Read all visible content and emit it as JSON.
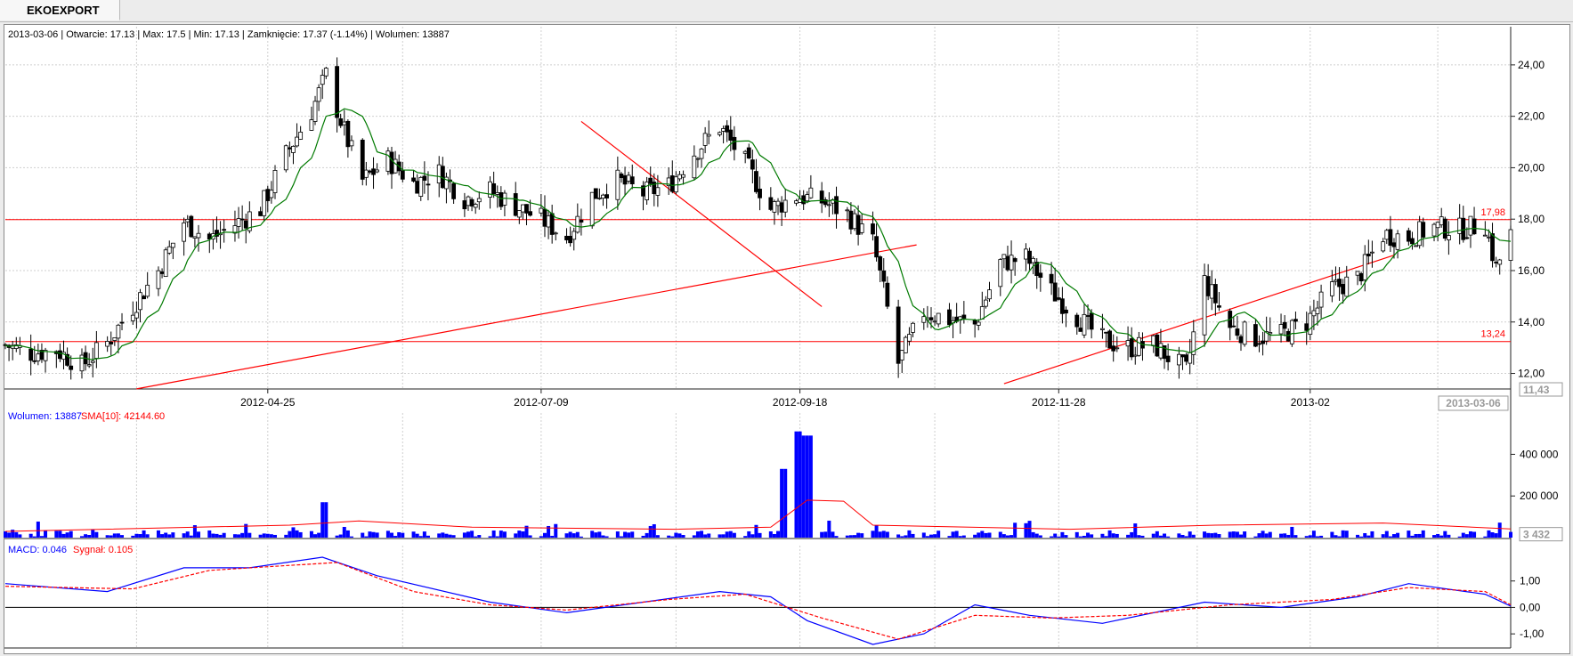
{
  "tab": {
    "label": "EKOEXPORT"
  },
  "info": {
    "date": "2013-03-06",
    "open_label": "Otwarcie",
    "open": "17.13",
    "max_label": "Max",
    "max": "17.5",
    "min_label": "Min",
    "min": "17.13",
    "close_label": "Zamknięcie",
    "close": "17.37 (-1.14%)",
    "volume_label": "Wolumen",
    "volume": "13887",
    "text": "2013-03-06 | Otwarcie: 17.13 | Max: 17.5 | Min: 17.13 | Zamknięcie: 17.37 (-1.14%)  | Wolumen: 13887"
  },
  "colors": {
    "up_candle": "#ffffff",
    "down_candle": "#000000",
    "sma_line": "#007a00",
    "trend_lines": "#ff0000",
    "volume_bars": "#0000ff",
    "macd": "#0000ff",
    "signal": "#ff0000"
  },
  "chart_data": [
    {
      "type": "candlestick",
      "title": "",
      "ylim": [
        11.43,
        25.0
      ],
      "y_ticks": [
        "12,00",
        "14,00",
        "16,00",
        "18,00",
        "20,00",
        "22,00",
        "24,00"
      ],
      "x_ticks": [
        "2012-04-25",
        "2012-07-09",
        "2012-09-18",
        "2012-11-28",
        "2013-02"
      ],
      "current_date_label": "2013-03-06",
      "min_label": "11,43",
      "grid": true,
      "horizontal_levels": [
        {
          "value": 17.98,
          "label": "17,98"
        },
        {
          "value": 13.24,
          "label": "13,24"
        }
      ],
      "trend_lines": [
        {
          "from": [
            "2012-03-20",
            11.4
          ],
          "to": [
            "2012-10-20",
            17.0
          ]
        },
        {
          "from": [
            "2012-07-20",
            21.8
          ],
          "to": [
            "2012-09-24",
            14.6
          ]
        },
        {
          "from": [
            "2012-11-13",
            11.6
          ],
          "to": [
            "2013-02-28",
            16.6
          ]
        }
      ],
      "close_path": [
        [
          "2012-02-13",
          13.1
        ],
        [
          "2012-02-20",
          12.8
        ],
        [
          "2012-02-27",
          12.9
        ],
        [
          "2012-03-05",
          12.3
        ],
        [
          "2012-03-12",
          13.2
        ],
        [
          "2012-03-19",
          14.6
        ],
        [
          "2012-03-26",
          16.0
        ],
        [
          "2012-04-02",
          17.9
        ],
        [
          "2012-04-09",
          17.2
        ],
        [
          "2012-04-16",
          17.8
        ],
        [
          "2012-04-23",
          18.4
        ],
        [
          "2012-04-30",
          20.5
        ],
        [
          "2012-05-07",
          22.2
        ],
        [
          "2012-05-11",
          23.6
        ],
        [
          "2012-05-16",
          21.4
        ],
        [
          "2012-05-21",
          19.5
        ],
        [
          "2012-05-28",
          20.3
        ],
        [
          "2012-06-04",
          19.4
        ],
        [
          "2012-06-11",
          19.8
        ],
        [
          "2012-06-18",
          18.8
        ],
        [
          "2012-06-25",
          19.1
        ],
        [
          "2012-07-02",
          18.5
        ],
        [
          "2012-07-09",
          18.0
        ],
        [
          "2012-07-16",
          17.3
        ],
        [
          "2012-07-23",
          18.9
        ],
        [
          "2012-07-30",
          19.5
        ],
        [
          "2012-08-06",
          19.0
        ],
        [
          "2012-08-13",
          19.3
        ],
        [
          "2012-08-20",
          20.6
        ],
        [
          "2012-08-27",
          21.6
        ],
        [
          "2012-09-03",
          20.2
        ],
        [
          "2012-09-10",
          18.4
        ],
        [
          "2012-09-17",
          18.9
        ],
        [
          "2012-09-24",
          18.7
        ],
        [
          "2012-10-01",
          18.2
        ],
        [
          "2012-10-08",
          17.1
        ],
        [
          "2012-10-11",
          15.2
        ],
        [
          "2012-10-15",
          12.4
        ],
        [
          "2012-10-22",
          14.4
        ],
        [
          "2012-10-29",
          14.1
        ],
        [
          "2012-11-05",
          13.9
        ],
        [
          "2012-11-12",
          16.3
        ],
        [
          "2012-11-19",
          16.5
        ],
        [
          "2012-11-26",
          15.2
        ],
        [
          "2012-12-03",
          14.2
        ],
        [
          "2012-12-10",
          13.3
        ],
        [
          "2012-12-17",
          13.0
        ],
        [
          "2012-12-24",
          13.1
        ],
        [
          "2013-01-02",
          12.1
        ],
        [
          "2013-01-07",
          15.6
        ],
        [
          "2013-01-14",
          13.8
        ],
        [
          "2013-01-21",
          13.4
        ],
        [
          "2013-01-28",
          13.5
        ],
        [
          "2013-02-04",
          14.0
        ],
        [
          "2013-02-11",
          15.3
        ],
        [
          "2013-02-18",
          15.7
        ],
        [
          "2013-02-25",
          17.4
        ],
        [
          "2013-03-04",
          17.3
        ],
        [
          "2013-03-11",
          17.7
        ],
        [
          "2013-03-18",
          17.6
        ],
        [
          "2013-03-25",
          17.8
        ],
        [
          "2013-03-28",
          16.1
        ],
        [
          "2013-04-01",
          17.4
        ]
      ]
    },
    {
      "type": "bar",
      "title": "",
      "legend": [
        {
          "name": "Wolumen",
          "value": "13887"
        },
        {
          "name": "SMA[10]",
          "value": "42144.60"
        }
      ],
      "y_ticks": [
        "200 000",
        "400 000"
      ],
      "last_value_label": "3 432",
      "ylim": [
        0,
        530000
      ],
      "peak_values": [
        {
          "x": "2012-05-11",
          "value": 170000
        },
        {
          "x": "2012-09-14",
          "value": 330000
        },
        {
          "x": "2012-09-18",
          "value": 510000
        },
        {
          "x": "2012-09-20",
          "value": 490000
        }
      ],
      "sma_path": [
        [
          "2012-02-13",
          30000
        ],
        [
          "2012-05-01",
          60000
        ],
        [
          "2012-05-20",
          80000
        ],
        [
          "2012-06-20",
          50000
        ],
        [
          "2012-08-15",
          40000
        ],
        [
          "2012-09-10",
          50000
        ],
        [
          "2012-09-20",
          180000
        ],
        [
          "2012-09-30",
          175000
        ],
        [
          "2012-10-08",
          60000
        ],
        [
          "2012-12-01",
          40000
        ],
        [
          "2013-01-10",
          60000
        ],
        [
          "2013-02-25",
          70000
        ],
        [
          "2013-04-01",
          42000
        ]
      ]
    },
    {
      "type": "line",
      "title": "",
      "legend": [
        {
          "name": "MACD",
          "value": "0.046"
        },
        {
          "name": "Sygnał",
          "value": "0.105"
        }
      ],
      "y_ticks": [
        "-1,00",
        "0,00",
        "1,00"
      ],
      "ylim": [
        -1.5,
        2.0
      ],
      "series": [
        {
          "name": "MACD",
          "points": [
            [
              "2012-02-13",
              0.9
            ],
            [
              "2012-03-12",
              0.6
            ],
            [
              "2012-04-02",
              1.5
            ],
            [
              "2012-04-20",
              1.5
            ],
            [
              "2012-05-10",
              1.9
            ],
            [
              "2012-05-25",
              1.2
            ],
            [
              "2012-06-25",
              0.2
            ],
            [
              "2012-07-16",
              -0.2
            ],
            [
              "2012-08-06",
              0.2
            ],
            [
              "2012-08-27",
              0.6
            ],
            [
              "2012-09-10",
              0.4
            ],
            [
              "2012-09-20",
              -0.5
            ],
            [
              "2012-10-08",
              -1.4
            ],
            [
              "2012-10-22",
              -1.0
            ],
            [
              "2012-11-05",
              0.1
            ],
            [
              "2012-11-20",
              -0.3
            ],
            [
              "2012-12-10",
              -0.6
            ],
            [
              "2013-01-07",
              0.2
            ],
            [
              "2013-01-28",
              0.0
            ],
            [
              "2013-02-18",
              0.4
            ],
            [
              "2013-03-04",
              0.9
            ],
            [
              "2013-03-25",
              0.5
            ],
            [
              "2013-04-01",
              0.05
            ]
          ]
        },
        {
          "name": "Sygnał",
          "points": [
            [
              "2012-02-13",
              0.8
            ],
            [
              "2012-03-19",
              0.7
            ],
            [
              "2012-04-09",
              1.4
            ],
            [
              "2012-05-14",
              1.7
            ],
            [
              "2012-06-04",
              0.6
            ],
            [
              "2012-06-25",
              0.1
            ],
            [
              "2012-07-16",
              -0.1
            ],
            [
              "2012-08-13",
              0.3
            ],
            [
              "2012-09-03",
              0.5
            ],
            [
              "2012-09-24",
              -0.4
            ],
            [
              "2012-10-15",
              -1.2
            ],
            [
              "2012-11-05",
              -0.3
            ],
            [
              "2012-11-26",
              -0.4
            ],
            [
              "2012-12-17",
              -0.3
            ],
            [
              "2013-01-14",
              0.1
            ],
            [
              "2013-02-11",
              0.3
            ],
            [
              "2013-03-04",
              0.75
            ],
            [
              "2013-03-25",
              0.6
            ],
            [
              "2013-04-01",
              0.1
            ]
          ]
        }
      ]
    }
  ]
}
